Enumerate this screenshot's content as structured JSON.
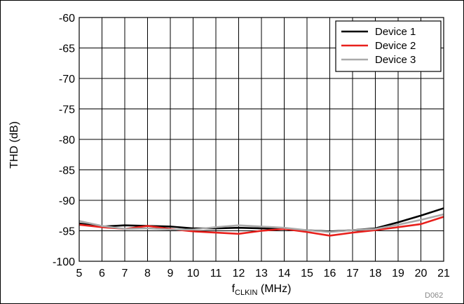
{
  "chart_data": {
    "type": "line",
    "title": "",
    "xlabel_main": "f",
    "xlabel_sub": "CLKIN",
    "xlabel_unit": " (MHz)",
    "ylabel": "THD (dB)",
    "xlim": [
      5,
      21
    ],
    "ylim": [
      -100,
      -60
    ],
    "xticks": [
      "5",
      "6",
      "7",
      "8",
      "9",
      "10",
      "11",
      "12",
      "13",
      "14",
      "15",
      "16",
      "17",
      "18",
      "19",
      "20",
      "21"
    ],
    "yticks": [
      "-60",
      "-65",
      "-70",
      "-75",
      "-80",
      "-85",
      "-90",
      "-95",
      "-100"
    ],
    "grid": true,
    "legend_position": "top-right",
    "figure_code": "D062",
    "x": [
      5,
      6,
      7,
      8,
      9,
      10,
      11,
      12,
      13,
      14,
      15,
      16,
      17,
      18,
      19,
      20,
      21
    ],
    "series": [
      {
        "name": "Device 1",
        "color": "#000000",
        "values": [
          -93.8,
          -94.3,
          -94.1,
          -94.2,
          -94.3,
          -94.6,
          -94.6,
          -94.5,
          -94.6,
          -94.7,
          -94.9,
          -95.1,
          -94.9,
          -94.6,
          -93.6,
          -92.5,
          -91.3
        ]
      },
      {
        "name": "Device 2",
        "color": "#e8201c",
        "values": [
          -94.0,
          -94.4,
          -94.7,
          -94.2,
          -94.7,
          -95.1,
          -95.3,
          -95.5,
          -95.0,
          -94.7,
          -95.2,
          -95.8,
          -95.3,
          -94.9,
          -94.4,
          -93.9,
          -92.7
        ]
      },
      {
        "name": "Device 3",
        "color": "#aaaaaa",
        "values": [
          -93.4,
          -94.2,
          -94.7,
          -94.6,
          -94.8,
          -94.8,
          -94.4,
          -94.1,
          -94.3,
          -94.5,
          -94.9,
          -95.2,
          -94.9,
          -94.7,
          -94.0,
          -93.2,
          -92.3
        ]
      }
    ]
  }
}
